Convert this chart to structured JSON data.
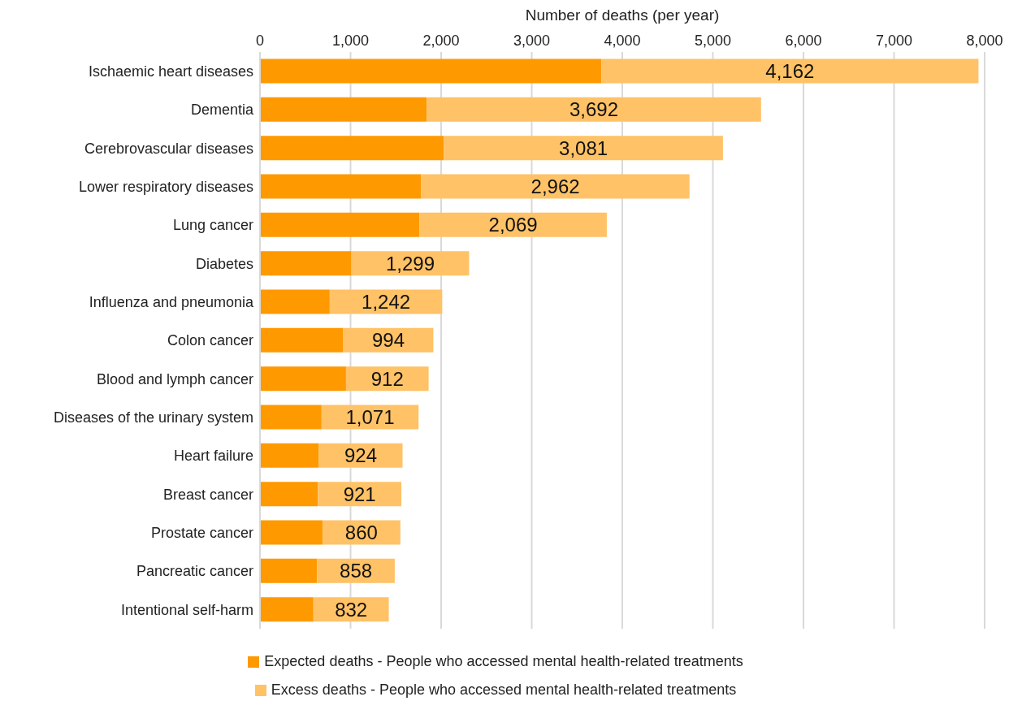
{
  "chart_data": {
    "type": "bar",
    "orientation": "horizontal",
    "stacked": true,
    "xlabel": "Number of deaths (per year)",
    "categories": [
      "Ischaemic heart diseases",
      "Dementia",
      "Cerebrovascular diseases",
      "Lower respiratory diseases",
      "Lung cancer",
      "Diabetes",
      "Influenza and pneumonia",
      "Colon cancer",
      "Blood and lymph cancer",
      "Diseases of the urinary system",
      "Heart failure",
      "Breast cancer",
      "Prostate cancer",
      "Pancreatic cancer",
      "Intentional self-harm"
    ],
    "series": [
      {
        "name": "Expected deaths - People who accessed mental health-related treatments",
        "color": "#ff9900",
        "values": [
          3770,
          1840,
          2030,
          1780,
          1760,
          1010,
          770,
          920,
          950,
          680,
          650,
          640,
          690,
          630,
          590
        ]
      },
      {
        "name": "Excess deaths - People who accessed mental health-related treatments",
        "color": "#ffc266",
        "values": [
          4162,
          3692,
          3081,
          2962,
          2069,
          1299,
          1242,
          994,
          912,
          1071,
          924,
          921,
          860,
          858,
          832
        ],
        "value_labels": [
          "4,162",
          "3,692",
          "3,081",
          "2,962",
          "2,069",
          "1,299",
          "1,242",
          "994",
          "912",
          "1,071",
          "924",
          "921",
          "860",
          "858",
          "832"
        ]
      }
    ],
    "xlim": [
      0,
      8000
    ],
    "xticks": [
      {
        "value": 0,
        "label": "0"
      },
      {
        "value": 1000,
        "label": "1,000"
      },
      {
        "value": 2000,
        "label": "2,000"
      },
      {
        "value": 3000,
        "label": "3,000"
      },
      {
        "value": 4000,
        "label": "4,000"
      },
      {
        "value": 5000,
        "label": "5,000"
      },
      {
        "value": 6000,
        "label": "6,000"
      },
      {
        "value": 7000,
        "label": "7,000"
      },
      {
        "value": 8000,
        "label": "8,000"
      }
    ],
    "grid": "x",
    "legend": "bottom"
  }
}
